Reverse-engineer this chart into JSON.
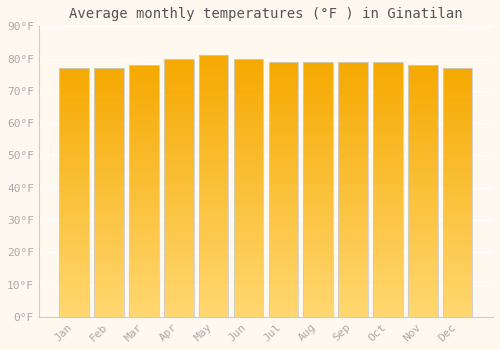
{
  "title": "Average monthly temperatures (°F ) in Ginatilan",
  "months": [
    "Jan",
    "Feb",
    "Mar",
    "Apr",
    "May",
    "Jun",
    "Jul",
    "Aug",
    "Sep",
    "Oct",
    "Nov",
    "Dec"
  ],
  "values": [
    77,
    77,
    78,
    80,
    81,
    80,
    79,
    79,
    79,
    79,
    78,
    77
  ],
  "bar_color_top": "#F5A800",
  "bar_color_bottom": "#FFD770",
  "bar_edge_color": "#DDDDDD",
  "background_color": "#FFF8EE",
  "plot_bg_color": "#FFF8EE",
  "grid_color": "#FFFFFF",
  "ylim": [
    0,
    90
  ],
  "yticks": [
    0,
    10,
    20,
    30,
    40,
    50,
    60,
    70,
    80,
    90
  ],
  "ytick_labels": [
    "0°F",
    "10°F",
    "20°F",
    "30°F",
    "40°F",
    "50°F",
    "60°F",
    "70°F",
    "80°F",
    "90°F"
  ],
  "title_fontsize": 10,
  "tick_fontsize": 8,
  "font_family": "monospace",
  "bar_width": 0.85,
  "n_strips": 80,
  "tick_color": "#AAAAAA"
}
